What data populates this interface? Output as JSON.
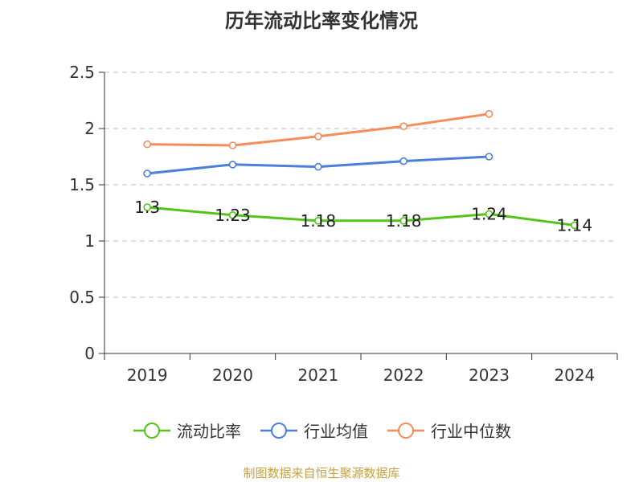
{
  "chart_data": {
    "type": "line",
    "title": "历年流动比率变化情况",
    "categories": [
      "2019",
      "2020",
      "2021",
      "2022",
      "2023",
      "2024"
    ],
    "y_ticks": [
      "0",
      "0.5",
      "1",
      "1.5",
      "2",
      "2.5"
    ],
    "ylim": [
      0,
      2.5
    ],
    "grid": true,
    "legend_position": "bottom",
    "series": [
      {
        "name": "流动比率",
        "color": "#52c41a",
        "values": [
          1.3,
          1.23,
          1.18,
          1.18,
          1.24,
          1.14
        ],
        "labels": [
          "1.3",
          "1.23",
          "1.18",
          "1.18",
          "1.24",
          "1.14"
        ],
        "show_labels": true
      },
      {
        "name": "行业均值",
        "color": "#4a7fdb",
        "values": [
          1.6,
          1.68,
          1.66,
          1.71,
          1.75,
          null
        ],
        "show_labels": false
      },
      {
        "name": "行业中位数",
        "color": "#f58c5a",
        "values": [
          1.86,
          1.85,
          1.93,
          2.02,
          2.13,
          null
        ],
        "show_labels": false
      }
    ]
  },
  "source": {
    "text": "制图数据来自恒生聚源数据库",
    "color": "#c8a040"
  }
}
